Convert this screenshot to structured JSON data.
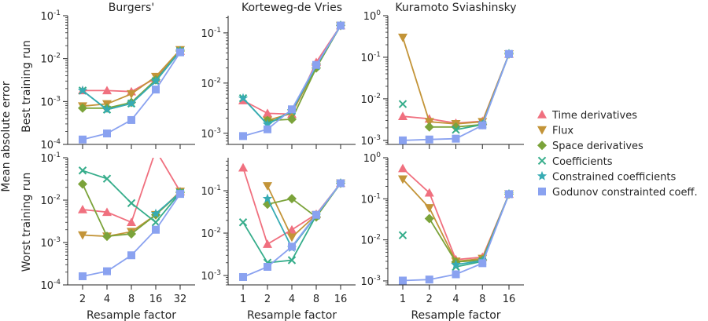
{
  "figure": {
    "shared_ylabel": "Mean absolute error",
    "row_labels": [
      "Best training run",
      "Worst training run"
    ],
    "legend_placement": "right"
  },
  "legend": [
    {
      "key": "time",
      "label": "Time derivatives",
      "color": "#f0707f",
      "marker": "triangle-up"
    },
    {
      "key": "flux",
      "label": "Flux",
      "color": "#c39438",
      "marker": "triangle-down"
    },
    {
      "key": "space",
      "label": "Space derivatives",
      "color": "#7ba33a",
      "marker": "diamond"
    },
    {
      "key": "coef",
      "label": "Coefficients",
      "color": "#36ad8b",
      "marker": "x"
    },
    {
      "key": "ccoef",
      "label": "Constrained coefficients",
      "color": "#36abb3",
      "marker": "star"
    },
    {
      "key": "godunov",
      "label": "Godunov constrainted coeff.",
      "color": "#8aa2f0",
      "marker": "square"
    }
  ],
  "chart_data": [
    {
      "type": "line",
      "row": 0,
      "col": 0,
      "title": "Burgers'",
      "xlabel": "",
      "yscale": "log",
      "x": [
        2,
        4,
        8,
        16,
        32
      ],
      "xticks": [
        "",
        "",
        "",
        "",
        ""
      ],
      "ylim": [
        0.0001,
        0.1
      ],
      "yticks": [
        "10^-4",
        "10^-3",
        "10^-2",
        "10^-1"
      ],
      "series": [
        {
          "key": "time",
          "values": [
            0.0018,
            0.0018,
            0.0017,
            0.0035,
            0.015
          ]
        },
        {
          "key": "flux",
          "values": [
            0.00078,
            0.00088,
            0.0015,
            0.0038,
            0.016
          ]
        },
        {
          "key": "space",
          "values": [
            0.0007,
            0.0007,
            0.00095,
            0.0032,
            0.015
          ]
        },
        {
          "key": "coef",
          "values": [
            0.0018,
            0.00065,
            0.0009,
            0.003,
            0.015
          ]
        },
        {
          "key": "ccoef",
          "values": [
            0.0018,
            0.00065,
            0.0009,
            0.003,
            0.015
          ]
        },
        {
          "key": "godunov",
          "values": [
            0.00013,
            0.00018,
            0.00037,
            0.0019,
            0.014
          ]
        }
      ]
    },
    {
      "type": "line",
      "row": 0,
      "col": 1,
      "title": "Korteweg-de Vries",
      "xlabel": "",
      "yscale": "log",
      "x": [
        1,
        2,
        4,
        8,
        16
      ],
      "xticks": [
        "",
        "",
        "",
        "",
        ""
      ],
      "ylim": [
        0.0006,
        0.22
      ],
      "yticks": [
        "10^-3",
        "10^-2",
        "10^-1"
      ],
      "series": [
        {
          "key": "time",
          "values": [
            0.0045,
            0.0025,
            0.0024,
            0.026,
            0.14
          ]
        },
        {
          "key": "flux",
          "values": [
            null,
            0.0018,
            0.0025,
            0.021,
            0.14
          ]
        },
        {
          "key": "space",
          "values": [
            null,
            0.0018,
            0.0019,
            0.02,
            0.14
          ]
        },
        {
          "key": "coef",
          "values": [
            0.005,
            0.0015,
            0.0028,
            0.022,
            0.14
          ]
        },
        {
          "key": "ccoef",
          "values": [
            0.005,
            0.0015,
            0.0028,
            0.022,
            0.14
          ]
        },
        {
          "key": "godunov",
          "values": [
            0.00088,
            0.0012,
            0.003,
            0.023,
            0.14
          ]
        }
      ]
    },
    {
      "type": "line",
      "row": 0,
      "col": 2,
      "title": "Kuramoto Sviashinsky",
      "xlabel": "",
      "yscale": "log",
      "x": [
        1,
        2,
        4,
        8,
        16
      ],
      "xticks": [
        "",
        "",
        "",
        "",
        ""
      ],
      "ylim": [
        0.0008,
        1
      ],
      "yticks": [
        "10^-3",
        "10^-2",
        "10^-1",
        "10^0"
      ],
      "series": [
        {
          "key": "time",
          "values": [
            0.0038,
            0.0033,
            0.0026,
            0.0029,
            0.12
          ]
        },
        {
          "key": "flux",
          "values": [
            0.3,
            0.0028,
            0.0025,
            0.0028,
            0.12
          ]
        },
        {
          "key": "space",
          "values": [
            null,
            0.0021,
            0.0021,
            0.0024,
            0.12
          ]
        },
        {
          "key": "coef",
          "values": [
            0.0075,
            null,
            0.0018,
            0.0024,
            0.12
          ]
        },
        {
          "key": "ccoef",
          "values": [
            null,
            null,
            null,
            0.0024,
            0.12
          ]
        },
        {
          "key": "godunov",
          "values": [
            0.001,
            0.00105,
            0.0011,
            0.0023,
            0.12
          ]
        }
      ]
    },
    {
      "type": "line",
      "row": 1,
      "col": 0,
      "title": "",
      "xlabel": "Resample factor",
      "yscale": "log",
      "x": [
        2,
        4,
        8,
        16,
        32
      ],
      "xticks": [
        "2",
        "4",
        "8",
        "16",
        "32"
      ],
      "ylim": [
        0.0001,
        0.1
      ],
      "yticks": [
        "10^-4",
        "10^-3",
        "10^-2",
        "10^-1"
      ],
      "series": [
        {
          "key": "time",
          "values": [
            0.006,
            0.0052,
            0.003,
            0.15,
            0.016
          ]
        },
        {
          "key": "flux",
          "values": [
            0.0015,
            0.0014,
            0.0018,
            0.0045,
            0.016
          ]
        },
        {
          "key": "space",
          "values": [
            0.024,
            0.0014,
            0.0016,
            0.0045,
            0.015
          ]
        },
        {
          "key": "coef",
          "values": [
            0.05,
            0.032,
            0.0085,
            0.003,
            0.015
          ]
        },
        {
          "key": "ccoef",
          "values": [
            null,
            null,
            null,
            0.0048,
            0.015
          ]
        },
        {
          "key": "godunov",
          "values": [
            0.00016,
            0.00021,
            0.0005,
            0.002,
            0.014
          ]
        }
      ]
    },
    {
      "type": "line",
      "row": 1,
      "col": 1,
      "title": "",
      "xlabel": "Resample factor",
      "yscale": "log",
      "x": [
        1,
        2,
        4,
        8,
        16
      ],
      "xticks": [
        "1",
        "2",
        "4",
        "8",
        "16"
      ],
      "ylim": [
        0.0006,
        0.6
      ],
      "yticks": [
        "10^-3",
        "10^-2",
        "10^-1"
      ],
      "series": [
        {
          "key": "time",
          "values": [
            0.35,
            0.0055,
            0.012,
            0.028,
            0.15
          ]
        },
        {
          "key": "flux",
          "values": [
            null,
            0.13,
            0.008,
            0.027,
            0.15
          ]
        },
        {
          "key": "space",
          "values": [
            null,
            0.048,
            0.065,
            0.024,
            0.15
          ]
        },
        {
          "key": "coef",
          "values": [
            0.018,
            0.002,
            0.0023,
            0.026,
            0.15
          ]
        },
        {
          "key": "ccoef",
          "values": [
            null,
            0.065,
            0.0045,
            0.026,
            0.15
          ]
        },
        {
          "key": "godunov",
          "values": [
            0.00092,
            0.0016,
            0.0048,
            0.027,
            0.15
          ]
        }
      ]
    },
    {
      "type": "line",
      "row": 1,
      "col": 2,
      "title": "",
      "xlabel": "Resample factor",
      "yscale": "log",
      "x": [
        1,
        2,
        4,
        8,
        16
      ],
      "xticks": [
        "1",
        "2",
        "4",
        "8",
        "16"
      ],
      "ylim": [
        0.0008,
        1
      ],
      "yticks": [
        "10^-3",
        "10^-2",
        "10^-1",
        "10^0"
      ],
      "series": [
        {
          "key": "time",
          "values": [
            0.55,
            0.14,
            0.0033,
            0.0038,
            0.13
          ]
        },
        {
          "key": "flux",
          "values": [
            0.3,
            0.06,
            0.003,
            0.0035,
            0.13
          ]
        },
        {
          "key": "space",
          "values": [
            null,
            0.033,
            0.0029,
            0.0032,
            0.13
          ]
        },
        {
          "key": "coef",
          "values": [
            0.013,
            null,
            0.0022,
            0.003,
            0.13
          ]
        },
        {
          "key": "ccoef",
          "values": [
            null,
            null,
            0.0025,
            0.0031,
            0.13
          ]
        },
        {
          "key": "godunov",
          "values": [
            0.00102,
            0.00108,
            0.00145,
            0.0027,
            0.13
          ]
        }
      ]
    }
  ]
}
